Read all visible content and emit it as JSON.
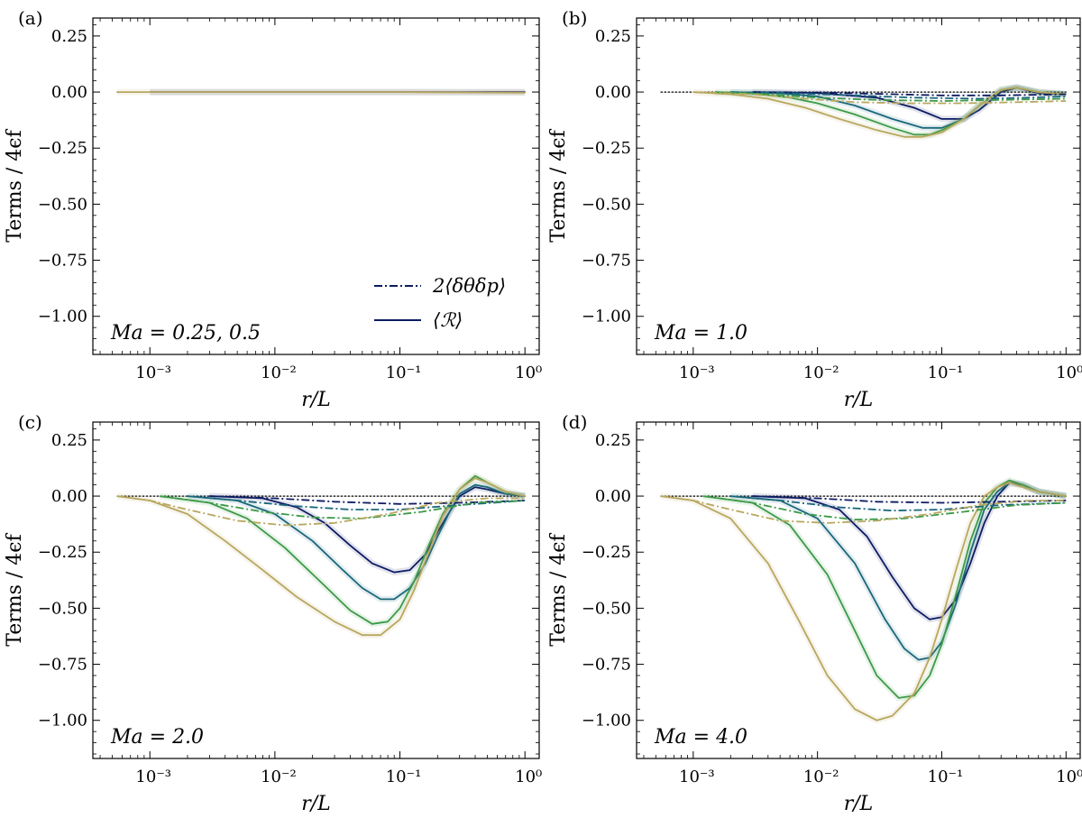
{
  "chart_data": [
    {
      "panel_label": "(a)",
      "annotation": "Ma = 0.25,  0.5",
      "type": "line",
      "xlabel": "r/L",
      "ylabel": "Terms / 4ϵf",
      "xscale": "log",
      "xlim": [
        0.00035,
        1.3
      ],
      "ylim": [
        -1.17,
        0.33
      ],
      "xticks": [
        0.001,
        0.01,
        0.1,
        1
      ],
      "xtick_labels": [
        "10⁻³",
        "10⁻²",
        "10⁻¹",
        "10⁰"
      ],
      "yticks": [
        0.25,
        0,
        -0.25,
        -0.5,
        -0.75,
        -1.0
      ],
      "ytick_labels": [
        "0.25",
        "0.00",
        "−0.25",
        "−0.50",
        "−0.75",
        "−1.00"
      ],
      "legend": [
        {
          "label": "2⟨δθδp⟩",
          "style": "dashdot"
        },
        {
          "label": "⟨ℛ⟩",
          "style": "solid"
        }
      ],
      "legend_position": "lower-right",
      "series": [
        {
          "name": "zero reference",
          "style": "dotted",
          "color": "#000000",
          "x": [
            0.00055,
            1.0
          ],
          "y": [
            0,
            0
          ]
        },
        {
          "name": "⟨ℛ⟩ navy",
          "style": "solid",
          "color": "#0d1b63",
          "x": [
            0.001,
            0.01,
            0.1,
            0.5,
            1.0
          ],
          "y": [
            0,
            0,
            0,
            0,
            0
          ]
        },
        {
          "name": "⟨ℛ⟩ olive",
          "style": "solid",
          "color": "#b8a75e",
          "x": [
            0.00055,
            0.01,
            0.1,
            0.5,
            1.0
          ],
          "y": [
            0,
            0,
            0,
            -0.002,
            -0.003
          ]
        }
      ]
    },
    {
      "panel_label": "(b)",
      "annotation": "Ma = 1.0",
      "type": "line",
      "xlabel": "r/L",
      "ylabel": "Terms / 4ϵf",
      "xscale": "log",
      "xlim": [
        0.00035,
        1.3
      ],
      "ylim": [
        -1.17,
        0.33
      ],
      "xticks": [
        0.001,
        0.01,
        0.1,
        1
      ],
      "xtick_labels": [
        "10⁻³",
        "10⁻²",
        "10⁻¹",
        "10⁰"
      ],
      "yticks": [
        0.25,
        0,
        -0.25,
        -0.5,
        -0.75,
        -1.0
      ],
      "ytick_labels": [
        "0.25",
        "0.00",
        "−0.25",
        "−0.50",
        "−0.75",
        "−1.00"
      ],
      "series": [
        {
          "name": "zero reference",
          "style": "dotted",
          "color": "#000000",
          "x": [
            0.00055,
            1.0
          ],
          "y": [
            0,
            0
          ]
        },
        {
          "name": "⟨ℛ⟩ navy",
          "style": "solid",
          "color": "#0d1b63",
          "x": [
            0.003,
            0.01,
            0.03,
            0.06,
            0.1,
            0.15,
            0.2,
            0.3,
            0.4,
            0.6,
            1.0
          ],
          "y": [
            0,
            -0.004,
            -0.025,
            -0.07,
            -0.12,
            -0.12,
            -0.08,
            0.0,
            0.02,
            -0.005,
            -0.01
          ]
        },
        {
          "name": "⟨ℛ⟩ teal",
          "style": "solid",
          "color": "#19677c",
          "x": [
            0.002,
            0.005,
            0.01,
            0.02,
            0.04,
            0.07,
            0.1,
            0.15,
            0.2,
            0.3,
            0.4,
            0.6,
            1.0
          ],
          "y": [
            0,
            -0.005,
            -0.02,
            -0.06,
            -0.12,
            -0.16,
            -0.16,
            -0.12,
            -0.06,
            0.01,
            0.02,
            0.0,
            -0.01
          ]
        },
        {
          "name": "⟨ℛ⟩ green",
          "style": "solid",
          "color": "#3d9a47",
          "x": [
            0.0015,
            0.003,
            0.006,
            0.01,
            0.02,
            0.04,
            0.06,
            0.08,
            0.1,
            0.15,
            0.2,
            0.3,
            0.4,
            0.6,
            1.0
          ],
          "y": [
            0,
            -0.005,
            -0.025,
            -0.05,
            -0.1,
            -0.16,
            -0.19,
            -0.19,
            -0.17,
            -0.12,
            -0.06,
            0.01,
            0.02,
            0.0,
            -0.01
          ]
        },
        {
          "name": "⟨ℛ⟩ olive",
          "style": "solid",
          "color": "#b8a75e",
          "x": [
            0.001,
            0.002,
            0.004,
            0.008,
            0.015,
            0.03,
            0.05,
            0.07,
            0.1,
            0.15,
            0.2,
            0.3,
            0.4,
            0.6,
            1.0
          ],
          "y": [
            0,
            -0.01,
            -0.03,
            -0.07,
            -0.12,
            -0.17,
            -0.2,
            -0.2,
            -0.18,
            -0.12,
            -0.06,
            0.01,
            0.02,
            0.0,
            -0.01
          ]
        },
        {
          "name": "2⟨δθδp⟩ navy",
          "style": "dashdot",
          "color": "#0d1b63",
          "x": [
            0.003,
            0.01,
            0.03,
            0.1,
            0.3,
            1.0
          ],
          "y": [
            0,
            -0.002,
            -0.008,
            -0.015,
            -0.015,
            -0.01
          ]
        },
        {
          "name": "2⟨δθδp⟩ teal",
          "style": "dashdot",
          "color": "#19677c",
          "x": [
            0.002,
            0.006,
            0.02,
            0.06,
            0.2,
            0.5,
            1.0
          ],
          "y": [
            0,
            -0.005,
            -0.015,
            -0.025,
            -0.03,
            -0.025,
            -0.02
          ]
        },
        {
          "name": "2⟨δθδp⟩ green",
          "style": "dashdot",
          "color": "#3d9a47",
          "x": [
            0.0015,
            0.004,
            0.01,
            0.03,
            0.1,
            0.3,
            1.0
          ],
          "y": [
            0,
            -0.01,
            -0.025,
            -0.035,
            -0.04,
            -0.035,
            -0.03
          ]
        },
        {
          "name": "2⟨δθδp⟩ olive",
          "style": "dashdot",
          "color": "#b8a75e",
          "x": [
            0.001,
            0.003,
            0.008,
            0.02,
            0.05,
            0.15,
            0.4,
            1.0
          ],
          "y": [
            0,
            -0.01,
            -0.03,
            -0.045,
            -0.05,
            -0.05,
            -0.045,
            -0.04
          ]
        }
      ]
    },
    {
      "panel_label": "(c)",
      "annotation": "Ma = 2.0",
      "type": "line",
      "xlabel": "r/L",
      "ylabel": "Terms / 4ϵf",
      "xscale": "log",
      "xlim": [
        0.00035,
        1.3
      ],
      "ylim": [
        -1.17,
        0.33
      ],
      "xticks": [
        0.001,
        0.01,
        0.1,
        1
      ],
      "xtick_labels": [
        "10⁻³",
        "10⁻²",
        "10⁻¹",
        "10⁰"
      ],
      "yticks": [
        0.25,
        0,
        -0.25,
        -0.5,
        -0.75,
        -1.0
      ],
      "ytick_labels": [
        "0.25",
        "0.00",
        "−0.25",
        "−0.50",
        "−0.75",
        "−1.00"
      ],
      "series": [
        {
          "name": "zero reference",
          "style": "dotted",
          "color": "#000000",
          "x": [
            0.00055,
            1.0
          ],
          "y": [
            0,
            0
          ]
        },
        {
          "name": "⟨ℛ⟩ navy",
          "style": "solid",
          "color": "#0d1b63",
          "x": [
            0.003,
            0.008,
            0.015,
            0.025,
            0.04,
            0.06,
            0.09,
            0.12,
            0.16,
            0.2,
            0.25,
            0.3,
            0.4,
            0.5,
            0.7,
            1.0
          ],
          "y": [
            0,
            -0.01,
            -0.05,
            -0.12,
            -0.22,
            -0.3,
            -0.34,
            -0.33,
            -0.26,
            -0.16,
            -0.07,
            0.0,
            0.04,
            0.03,
            0.01,
            0.0
          ]
        },
        {
          "name": "⟨ℛ⟩ teal",
          "style": "solid",
          "color": "#19677c",
          "x": [
            0.002,
            0.005,
            0.01,
            0.02,
            0.035,
            0.05,
            0.07,
            0.09,
            0.12,
            0.16,
            0.2,
            0.25,
            0.3,
            0.4,
            0.5,
            0.7,
            1.0
          ],
          "y": [
            0,
            -0.02,
            -0.08,
            -0.2,
            -0.33,
            -0.41,
            -0.46,
            -0.46,
            -0.41,
            -0.3,
            -0.18,
            -0.07,
            0.01,
            0.05,
            0.04,
            0.01,
            0.0
          ]
        },
        {
          "name": "⟨ℛ⟩ green",
          "style": "solid",
          "color": "#3d9a47",
          "x": [
            0.0012,
            0.003,
            0.006,
            0.012,
            0.025,
            0.04,
            0.06,
            0.08,
            0.1,
            0.13,
            0.17,
            0.22,
            0.3,
            0.4,
            0.5,
            0.7,
            1.0
          ],
          "y": [
            0,
            -0.03,
            -0.1,
            -0.23,
            -0.4,
            -0.51,
            -0.57,
            -0.56,
            -0.5,
            -0.38,
            -0.22,
            -0.08,
            0.03,
            0.09,
            0.06,
            0.02,
            0.0
          ]
        },
        {
          "name": "⟨ℛ⟩ olive",
          "style": "solid",
          "color": "#b8a75e",
          "x": [
            0.00055,
            0.001,
            0.002,
            0.004,
            0.008,
            0.015,
            0.03,
            0.05,
            0.07,
            0.1,
            0.13,
            0.17,
            0.22,
            0.3,
            0.4,
            0.5,
            0.7,
            1.0
          ],
          "y": [
            0,
            -0.02,
            -0.08,
            -0.2,
            -0.33,
            -0.45,
            -0.56,
            -0.62,
            -0.62,
            -0.55,
            -0.42,
            -0.25,
            -0.09,
            0.03,
            0.08,
            0.06,
            0.02,
            0.0
          ]
        },
        {
          "name": "2⟨δθδp⟩ navy",
          "style": "dashdot",
          "color": "#0d1b63",
          "x": [
            0.003,
            0.01,
            0.03,
            0.1,
            0.3,
            1.0
          ],
          "y": [
            0,
            -0.01,
            -0.025,
            -0.035,
            -0.03,
            -0.02
          ]
        },
        {
          "name": "2⟨δθδp⟩ teal",
          "style": "dashdot",
          "color": "#19677c",
          "x": [
            0.002,
            0.005,
            0.015,
            0.04,
            0.1,
            0.3,
            1.0
          ],
          "y": [
            0,
            -0.02,
            -0.045,
            -0.06,
            -0.06,
            -0.04,
            -0.02
          ]
        },
        {
          "name": "2⟨δθδp⟩ green",
          "style": "dashdot",
          "color": "#3d9a47",
          "x": [
            0.0012,
            0.003,
            0.008,
            0.02,
            0.05,
            0.15,
            0.4,
            1.0
          ],
          "y": [
            0,
            -0.03,
            -0.07,
            -0.095,
            -0.1,
            -0.07,
            -0.03,
            -0.02
          ]
        },
        {
          "name": "2⟨δθδp⟩ olive",
          "style": "dashdot",
          "color": "#b8a75e",
          "x": [
            0.00055,
            0.001,
            0.002,
            0.005,
            0.012,
            0.03,
            0.08,
            0.2,
            0.5,
            1.0
          ],
          "y": [
            0,
            -0.02,
            -0.06,
            -0.11,
            -0.13,
            -0.12,
            -0.08,
            -0.03,
            -0.01,
            -0.01
          ]
        }
      ]
    },
    {
      "panel_label": "(d)",
      "annotation": "Ma = 4.0",
      "type": "line",
      "xlabel": "r/L",
      "ylabel": "Terms / 4ϵf",
      "xscale": "log",
      "xlim": [
        0.00035,
        1.3
      ],
      "ylim": [
        -1.17,
        0.33
      ],
      "xticks": [
        0.001,
        0.01,
        0.1,
        1
      ],
      "xtick_labels": [
        "10⁻³",
        "10⁻²",
        "10⁻¹",
        "10⁰"
      ],
      "yticks": [
        0.25,
        0,
        -0.25,
        -0.5,
        -0.75,
        -1.0
      ],
      "ytick_labels": [
        "0.25",
        "0.00",
        "−0.25",
        "−0.50",
        "−0.75",
        "−1.00"
      ],
      "series": [
        {
          "name": "zero reference",
          "style": "dotted",
          "color": "#000000",
          "x": [
            0.00055,
            1.0
          ],
          "y": [
            0,
            0
          ]
        },
        {
          "name": "⟨ℛ⟩ navy",
          "style": "solid",
          "color": "#0d1b63",
          "x": [
            0.003,
            0.008,
            0.015,
            0.025,
            0.04,
            0.06,
            0.08,
            0.1,
            0.13,
            0.17,
            0.22,
            0.28,
            0.35,
            0.45,
            0.6,
            1.0
          ],
          "y": [
            0,
            -0.01,
            -0.06,
            -0.18,
            -0.36,
            -0.5,
            -0.55,
            -0.54,
            -0.46,
            -0.3,
            -0.12,
            0.0,
            0.06,
            0.05,
            0.02,
            0.0
          ]
        },
        {
          "name": "⟨ℛ⟩ teal",
          "style": "solid",
          "color": "#19677c",
          "x": [
            0.002,
            0.005,
            0.01,
            0.02,
            0.035,
            0.05,
            0.065,
            0.08,
            0.1,
            0.13,
            0.17,
            0.22,
            0.28,
            0.35,
            0.45,
            0.6,
            1.0
          ],
          "y": [
            0,
            -0.02,
            -0.1,
            -0.3,
            -0.55,
            -0.68,
            -0.73,
            -0.72,
            -0.65,
            -0.48,
            -0.25,
            -0.06,
            0.02,
            0.06,
            0.05,
            0.02,
            0.0
          ]
        },
        {
          "name": "⟨ℛ⟩ green",
          "style": "solid",
          "color": "#3d9a47",
          "x": [
            0.0012,
            0.003,
            0.006,
            0.012,
            0.02,
            0.03,
            0.045,
            0.06,
            0.08,
            0.1,
            0.13,
            0.17,
            0.22,
            0.28,
            0.35,
            0.45,
            0.6,
            1.0
          ],
          "y": [
            0,
            -0.03,
            -0.13,
            -0.35,
            -0.6,
            -0.8,
            -0.9,
            -0.89,
            -0.8,
            -0.66,
            -0.44,
            -0.2,
            -0.03,
            0.04,
            0.07,
            0.05,
            0.02,
            0.0
          ]
        },
        {
          "name": "⟨ℛ⟩ olive",
          "style": "solid",
          "color": "#b8a75e",
          "x": [
            0.00055,
            0.001,
            0.002,
            0.004,
            0.007,
            0.012,
            0.02,
            0.03,
            0.04,
            0.06,
            0.08,
            0.1,
            0.13,
            0.17,
            0.22,
            0.28,
            0.35,
            0.45,
            0.6,
            1.0
          ],
          "y": [
            0,
            -0.02,
            -0.1,
            -0.3,
            -0.55,
            -0.8,
            -0.95,
            -1.0,
            -0.98,
            -0.88,
            -0.72,
            -0.55,
            -0.33,
            -0.12,
            0.0,
            0.04,
            0.06,
            0.04,
            0.02,
            0.0
          ]
        },
        {
          "name": "2⟨δθδp⟩ navy",
          "style": "dashdot",
          "color": "#0d1b63",
          "x": [
            0.003,
            0.01,
            0.03,
            0.1,
            0.3,
            1.0
          ],
          "y": [
            0,
            -0.01,
            -0.025,
            -0.03,
            -0.025,
            -0.02
          ]
        },
        {
          "name": "2⟨δθδp⟩ teal",
          "style": "dashdot",
          "color": "#19677c",
          "x": [
            0.002,
            0.005,
            0.015,
            0.04,
            0.1,
            0.3,
            1.0
          ],
          "y": [
            0,
            -0.02,
            -0.05,
            -0.065,
            -0.06,
            -0.04,
            -0.03
          ]
        },
        {
          "name": "2⟨δθδp⟩ green",
          "style": "dashdot",
          "color": "#3d9a47",
          "x": [
            0.0012,
            0.003,
            0.008,
            0.02,
            0.05,
            0.15,
            0.4,
            1.0
          ],
          "y": [
            0,
            -0.03,
            -0.08,
            -0.105,
            -0.1,
            -0.07,
            -0.04,
            -0.03
          ]
        },
        {
          "name": "2⟨δθδp⟩ olive",
          "style": "dashdot",
          "color": "#b8a75e",
          "x": [
            0.00055,
            0.001,
            0.002,
            0.005,
            0.012,
            0.03,
            0.08,
            0.2,
            0.5,
            1.0
          ],
          "y": [
            0,
            -0.02,
            -0.06,
            -0.11,
            -0.12,
            -0.11,
            -0.08,
            -0.04,
            -0.02,
            -0.02
          ]
        }
      ]
    }
  ]
}
